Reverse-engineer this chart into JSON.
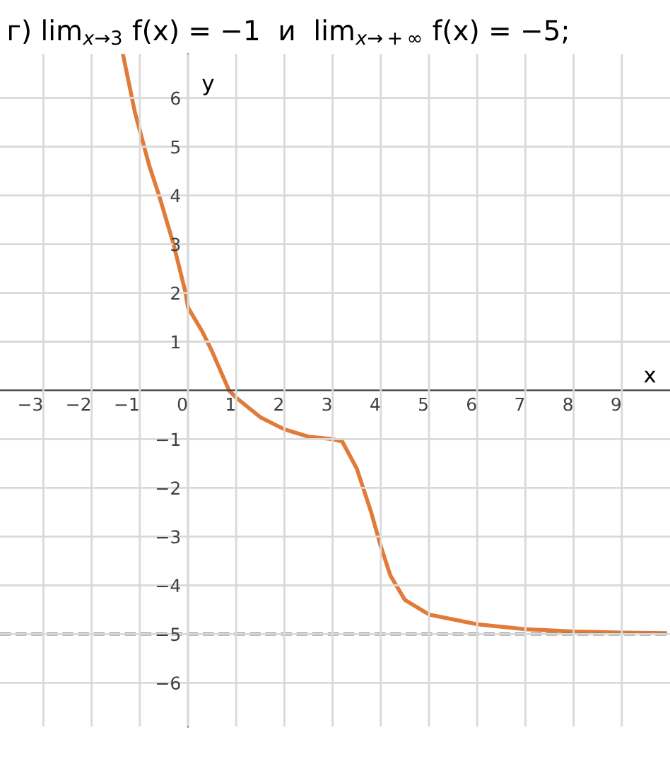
{
  "chart_data": {
    "type": "line",
    "title": "г) lim$_{x→3}$ f(x) = −1  и  lim$_{x→+∞}$ f(x) = −5;",
    "xlabel": "x",
    "ylabel": "y",
    "series": [
      {
        "color": "#e07b39",
        "x": [
          -1.35,
          -1.1,
          -0.8,
          -0.6,
          -0.3,
          -0.05,
          0,
          0.3,
          0.5,
          0.85,
          1,
          1.5,
          2,
          2.5,
          3,
          3.2,
          3.5,
          3.8,
          4,
          4.2,
          4.5,
          5,
          6,
          7,
          8,
          9,
          9.9
        ],
        "values": [
          6.9,
          5.7,
          4.6,
          4.0,
          3.0,
          2.0,
          1.7,
          1.2,
          0.8,
          0.0,
          -0.15,
          -0.55,
          -0.8,
          -0.95,
          -1.0,
          -1.05,
          -1.6,
          -2.5,
          -3.2,
          -3.8,
          -4.3,
          -4.6,
          -4.8,
          -4.9,
          -4.95,
          -4.97,
          -4.98
        ]
      }
    ],
    "xlim": [
      -3.9,
      10
    ],
    "ylim": [
      -6.9,
      6.9
    ],
    "xticks": [
      -3,
      -2,
      -1,
      0,
      1,
      2,
      3,
      4,
      5,
      6,
      7,
      8,
      9
    ],
    "yticks": [
      -6,
      -5,
      -4,
      -3,
      -2,
      -1,
      1,
      2,
      3,
      4,
      5,
      6
    ],
    "ref_lines": [
      {
        "axis": "y",
        "value": -5,
        "color": "#7f7f7f",
        "line_style": "dashed"
      }
    ],
    "grid": true,
    "legend": false,
    "marker": "none",
    "line_style": "solid"
  }
}
